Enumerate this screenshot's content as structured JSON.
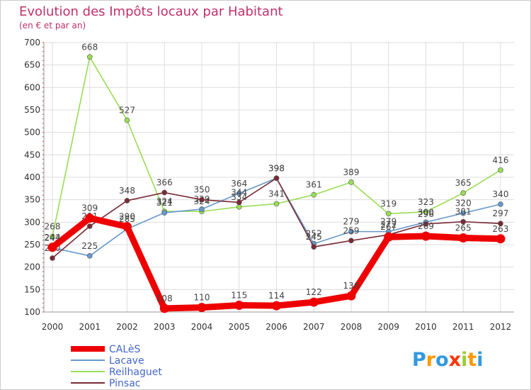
{
  "chart_data": {
    "type": "line",
    "title": "Evolution des Impôts locaux par Habitant",
    "subtitle": "(en € et par an)",
    "xlabel": "",
    "ylabel": "",
    "ylim": [
      100,
      700
    ],
    "yticks": [
      100,
      150,
      200,
      250,
      300,
      350,
      400,
      450,
      500,
      550,
      600,
      650,
      700
    ],
    "categories": [
      "2000",
      "2001",
      "2002",
      "2003",
      "2004",
      "2005",
      "2006",
      "2007",
      "2008",
      "2009",
      "2010",
      "2011",
      "2012"
    ],
    "grid": true,
    "legend_position": "bottom-left",
    "series": [
      {
        "name": "Reilhaguet",
        "color": "#99dd55",
        "values": [
          268,
          668,
          527,
          324,
          324,
          334,
          341,
          361,
          389,
          319,
          323,
          365,
          416
        ]
      },
      {
        "name": "Lacave",
        "color": "#6699cc",
        "values": [
          243,
          225,
          285,
          321,
          329,
          364,
          398,
          252,
          279,
          279,
          300,
          320,
          340
        ]
      },
      {
        "name": "Pinsac",
        "color": "#7a2a36",
        "values": [
          220,
          291,
          348,
          366,
          350,
          344,
          398,
          245,
          259,
          272,
          296,
          301,
          297
        ]
      },
      {
        "name": "CALèS",
        "color": "#ee0000",
        "values": [
          244,
          309,
          290,
          108,
          110,
          115,
          114,
          122,
          136,
          267,
          269,
          265,
          263
        ]
      }
    ],
    "legend_order": [
      "CALèS",
      "Lacave",
      "Reilhaguet",
      "Pinsac"
    ]
  },
  "branding": {
    "logo_text": "Proxiti",
    "logo_letter_colors": [
      "#3399dd",
      "#ff9900",
      "#3399dd",
      "#ff3300",
      "#99cc33",
      "#ff9900",
      "#3399dd"
    ]
  }
}
